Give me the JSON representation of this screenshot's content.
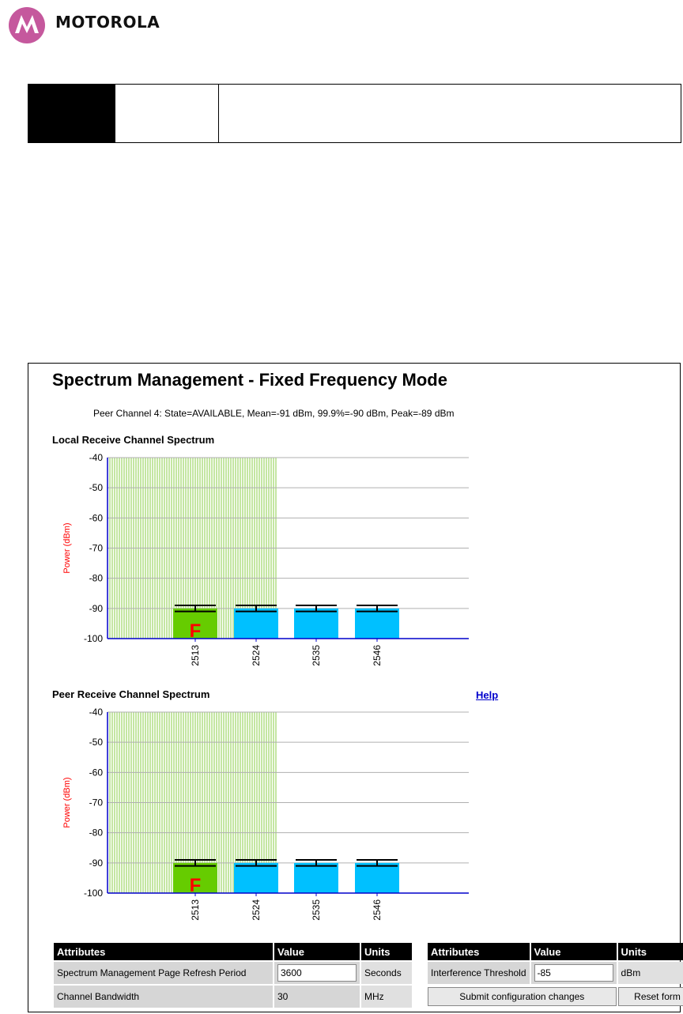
{
  "header": {
    "logo_text": "MOTOROLA",
    "logo_icon": "motorola-batwing-icon",
    "brand_color": "#c5589d"
  },
  "page": {
    "title": "Spectrum Management - Fixed Frequency Mode",
    "peer_info": "Peer Channel 4: State=AVAILABLE, Mean=-91 dBm, 99.9%=-90 dBm, Peak=-89 dBm",
    "help_label": "Help"
  },
  "charts": [
    {
      "title": "Local Receive Channel Spectrum",
      "ylabel": "Power (dBm)",
      "y_ticks": [
        "-40",
        "-50",
        "-60",
        "-70",
        "-80",
        "-90",
        "-100"
      ],
      "x_labels": [
        "2513",
        "2524",
        "2535",
        "2546"
      ],
      "marker": "F"
    },
    {
      "title": "Peer Receive Channel Spectrum",
      "ylabel": "Power (dBm)",
      "y_ticks": [
        "-40",
        "-50",
        "-60",
        "-70",
        "-80",
        "-90",
        "-100"
      ],
      "x_labels": [
        "2513",
        "2524",
        "2535",
        "2546"
      ],
      "marker": "F"
    }
  ],
  "chart_data": [
    {
      "type": "bar",
      "title": "Local Receive Channel Spectrum",
      "ylabel": "Power (dBm)",
      "ylim": [
        -100,
        -40
      ],
      "categories": [
        "2513",
        "2524",
        "2535",
        "2546"
      ],
      "series": [
        {
          "values": [
            -90,
            -90,
            -90,
            -90
          ],
          "peaks": [
            -89,
            -89,
            -89,
            -89
          ],
          "lows": [
            -91,
            -91,
            -91,
            -91
          ]
        }
      ],
      "active_channel": "2513",
      "active_marker": "F",
      "barred_region_x_range": [
        "",
        "2524"
      ],
      "colors": {
        "active": "#66cc00",
        "available": "#00c0ff",
        "barred": "#88cc44",
        "axis": "#0000cc"
      }
    },
    {
      "type": "bar",
      "title": "Peer Receive Channel Spectrum",
      "ylabel": "Power (dBm)",
      "ylim": [
        -100,
        -40
      ],
      "categories": [
        "2513",
        "2524",
        "2535",
        "2546"
      ],
      "series": [
        {
          "values": [
            -90,
            -90,
            -90,
            -90
          ],
          "peaks": [
            -89,
            -89,
            -89,
            -89
          ],
          "lows": [
            -91,
            -91,
            -91,
            -91
          ]
        }
      ],
      "active_channel": "2513",
      "active_marker": "F",
      "barred_region_x_range": [
        "",
        "2524"
      ],
      "colors": {
        "active": "#66cc00",
        "available": "#00c0ff",
        "barred": "#88cc44",
        "axis": "#0000cc"
      }
    }
  ],
  "left_table": {
    "headers": [
      "Attributes",
      "Value",
      "Units"
    ],
    "rows": [
      {
        "attribute": "Spectrum Management Page Refresh Period",
        "value": "3600",
        "units": "Seconds"
      },
      {
        "attribute": "Channel Bandwidth",
        "value": "30",
        "units": "MHz"
      }
    ]
  },
  "right_table": {
    "headers": [
      "Attributes",
      "Value",
      "Units"
    ],
    "rows": [
      {
        "attribute": "Interference Threshold",
        "value": "-85",
        "units": "dBm"
      }
    ],
    "submit_label": "Submit configuration changes",
    "reset_label": "Reset form"
  }
}
